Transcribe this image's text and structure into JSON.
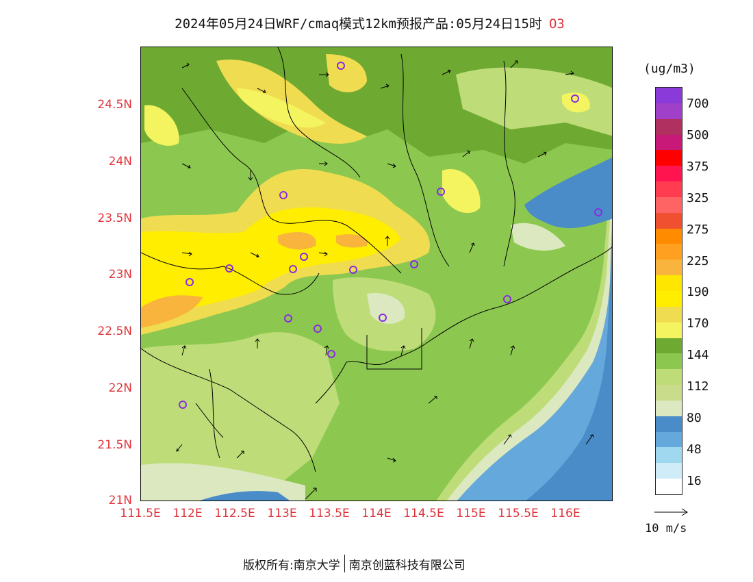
{
  "title": {
    "text": "2024年05月24日WRF/cmaq模式12km预报产品:05月24日15时",
    "species": "O3"
  },
  "map": {
    "lat_ticks": [
      "24.5N",
      "24N",
      "23.5N",
      "23N",
      "22.5N",
      "22N",
      "21.5N",
      "21N"
    ],
    "lon_ticks": [
      "111.5E",
      "112E",
      "112.5E",
      "113E",
      "113.5E",
      "114E",
      "114.5E",
      "115E",
      "115.5E",
      "116E"
    ],
    "lon_range": [
      111.5,
      116.5
    ],
    "lat_range": [
      21.0,
      25.0
    ],
    "station_marker_color": "#8a2be2"
  },
  "legend": {
    "unit": "(ug/m3)",
    "labels": [
      "700",
      "500",
      "375",
      "325",
      "275",
      "225",
      "190",
      "170",
      "144",
      "112",
      "80",
      "48",
      "16"
    ],
    "colors_top_to_bottom": [
      "#8a3ad8",
      "#a040c8",
      "#b03060",
      "#c81878",
      "#ff0000",
      "#ff1450",
      "#ff3c50",
      "#ff6464",
      "#f05030",
      "#ff8c00",
      "#ffa020",
      "#f8b43c",
      "#ffe600",
      "#ffee00",
      "#f0dc50",
      "#f4f460",
      "#6eaa32",
      "#8cc850",
      "#bedc78",
      "#c8dc8c",
      "#dce8c0",
      "#4a8cc8",
      "#64a8dc",
      "#a0d8f0",
      "#d0ecf8",
      "#ffffff"
    ]
  },
  "wind_reference": {
    "label": "10 m/s"
  },
  "footer": {
    "left": "版权所有:南京大学",
    "right": "南京创蓝科技有限公司"
  }
}
